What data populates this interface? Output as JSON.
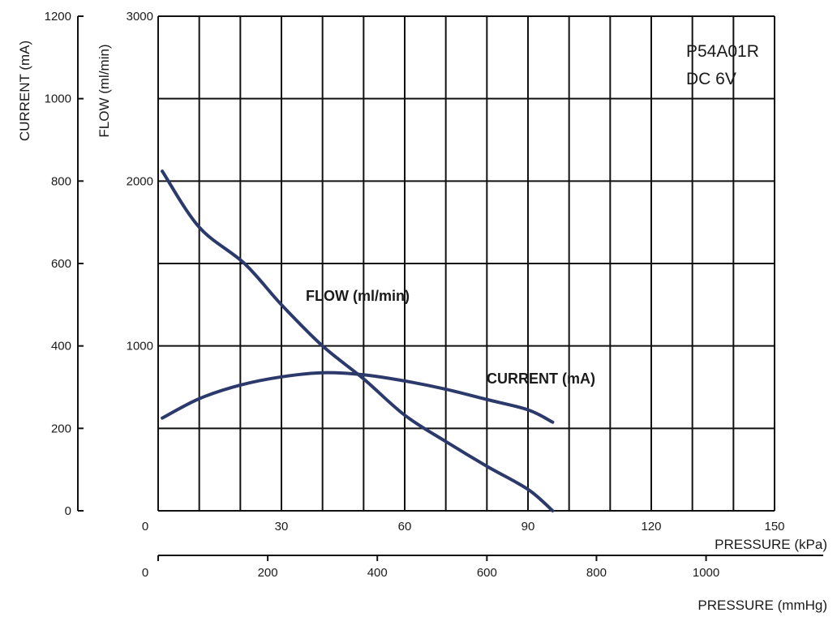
{
  "chart_data": {
    "type": "line",
    "title_lines": [
      "P54A01R",
      "DC 6V"
    ],
    "x_axis": {
      "label": "PRESSURE (kPa)",
      "range": [
        0,
        150
      ],
      "ticks": [
        0,
        30,
        60,
        90,
        120,
        150
      ],
      "tick_labels": [
        "0",
        "30",
        "60",
        "90",
        "120",
        "150"
      ],
      "grid_step": 10
    },
    "x2_axis": {
      "label": "PRESSURE (mmHg)",
      "range": [
        0,
        1125
      ],
      "ticks": [
        0,
        200,
        400,
        600,
        800,
        1000
      ],
      "tick_labels": [
        "0",
        "200",
        "400",
        "600",
        "800",
        "1000"
      ]
    },
    "y_left_axis": {
      "label": "CURRENT (mA)",
      "range": [
        0,
        1200
      ],
      "ticks": [
        0,
        200,
        400,
        600,
        800,
        1000,
        1200
      ],
      "tick_labels": [
        "0",
        "200",
        "400",
        "600",
        "800",
        "1000",
        "1200"
      ]
    },
    "y_right_axis": {
      "label": "FLOW (ml/min)",
      "range": [
        0,
        3000
      ],
      "ticks": [
        1000,
        2000,
        3000
      ],
      "tick_labels": [
        "1000",
        "2000",
        "3000"
      ]
    },
    "grid": true,
    "series": [
      {
        "name": "FLOW (ml/min)",
        "axis": "y_right",
        "color": "#2b3a6b",
        "x": [
          1,
          10,
          21,
          30,
          40,
          50,
          60,
          70,
          80,
          90,
          96
        ],
        "y": [
          2060,
          1720,
          1500,
          1250,
          1000,
          800,
          580,
          420,
          270,
          130,
          0
        ]
      },
      {
        "name": "CURRENT (mA)",
        "axis": "y_left",
        "color": "#2b3a6b",
        "x": [
          1,
          10,
          20,
          30,
          40,
          50,
          60,
          70,
          80,
          90,
          96
        ],
        "y": [
          225,
          272,
          305,
          325,
          335,
          330,
          315,
          295,
          270,
          245,
          215
        ]
      }
    ],
    "annotations": [
      {
        "text": "FLOW (ml/min)",
        "series": 0
      },
      {
        "text": "CURRENT (mA)",
        "series": 1
      }
    ]
  }
}
